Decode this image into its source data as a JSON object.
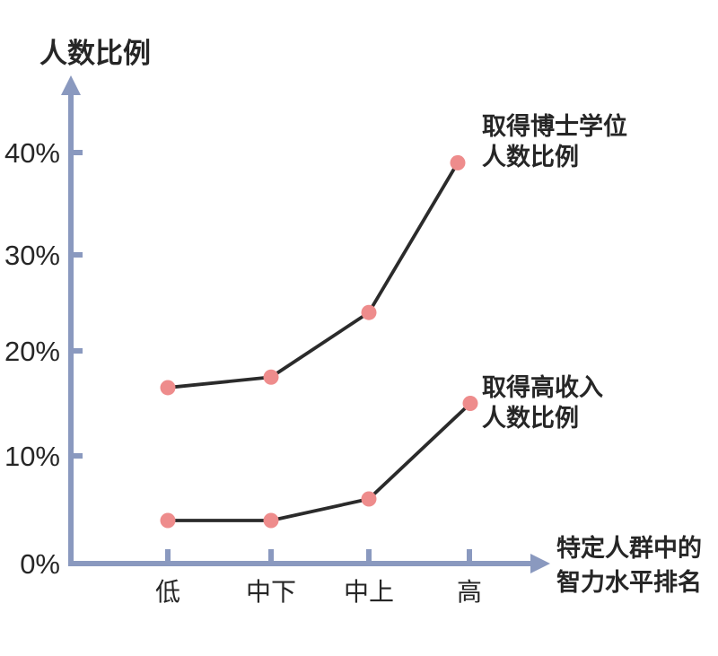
{
  "page": {
    "background": "#ffffff"
  },
  "colors": {
    "axis": "#8a99bf",
    "series_line": "#2b2b2b",
    "point_fill": "#ee8c8c",
    "text": "#262626"
  },
  "chart_data": {
    "type": "line",
    "title": "",
    "ylabel": "人数比例",
    "xlabel": "特定人群中的智力水平排名",
    "xlabel_lines": [
      "特定人群中的",
      "智力水平排名"
    ],
    "categories": [
      "低",
      "中下",
      "中上",
      "高"
    ],
    "series": [
      {
        "name": "取得博士学位人数比例",
        "label_lines": [
          "取得博士学位",
          "人数比例"
        ],
        "values": [
          16.5,
          17.5,
          24,
          39
        ]
      },
      {
        "name": "取得高收入人数比例",
        "label_lines": [
          "取得高收入",
          "人数比例"
        ],
        "values": [
          4,
          4,
          6,
          15
        ]
      }
    ],
    "y_ticks": [
      "0%",
      "10%",
      "20%",
      "30%",
      "40%"
    ],
    "y_tick_values": [
      0,
      10,
      20,
      30,
      40
    ],
    "ylim": [
      0,
      46
    ],
    "grid": false,
    "legend": "inline-annotations",
    "marker": "circle"
  }
}
